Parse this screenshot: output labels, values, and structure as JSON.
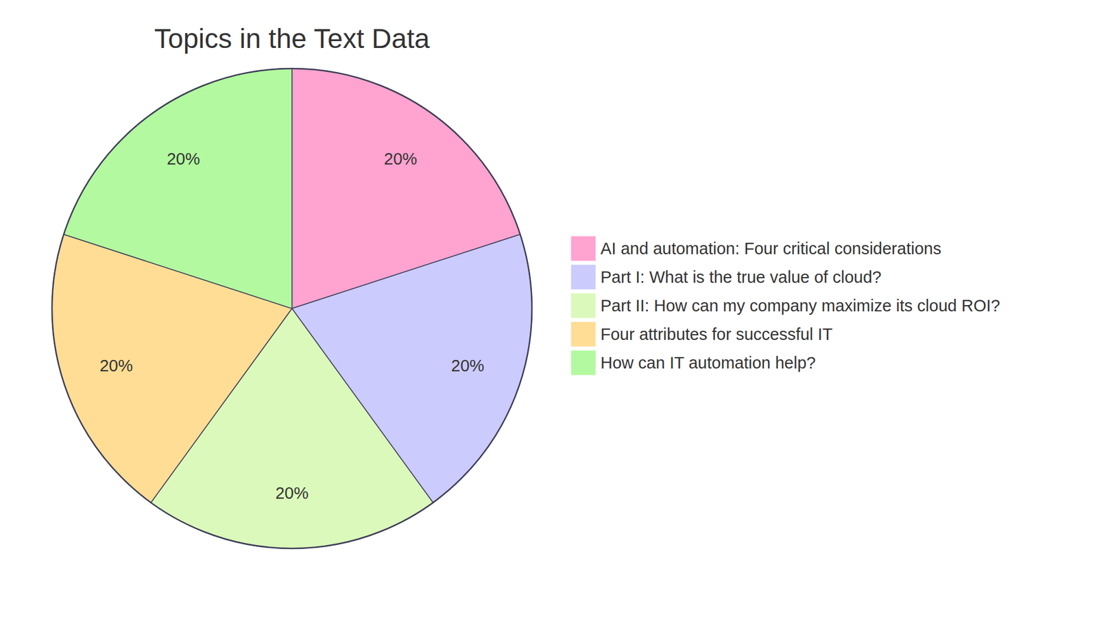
{
  "chart_data": {
    "type": "pie",
    "title": "Topics in the Text Data",
    "categories": [
      "AI and automation: Four critical considerations",
      "Part I: What is the true value of cloud?",
      "Part II: How can my company maximize its cloud ROI?",
      "Four attributes for successful IT",
      "How can IT automation help?"
    ],
    "values": [
      20,
      20,
      20,
      20,
      20
    ],
    "value_labels": [
      "20%",
      "20%",
      "20%",
      "20%",
      "20%"
    ],
    "colors": [
      "#ffa3d0",
      "#cbcbfd",
      "#dbf9bb",
      "#ffdd95",
      "#b3f9a0"
    ],
    "data_labels": true,
    "legend": "right"
  }
}
